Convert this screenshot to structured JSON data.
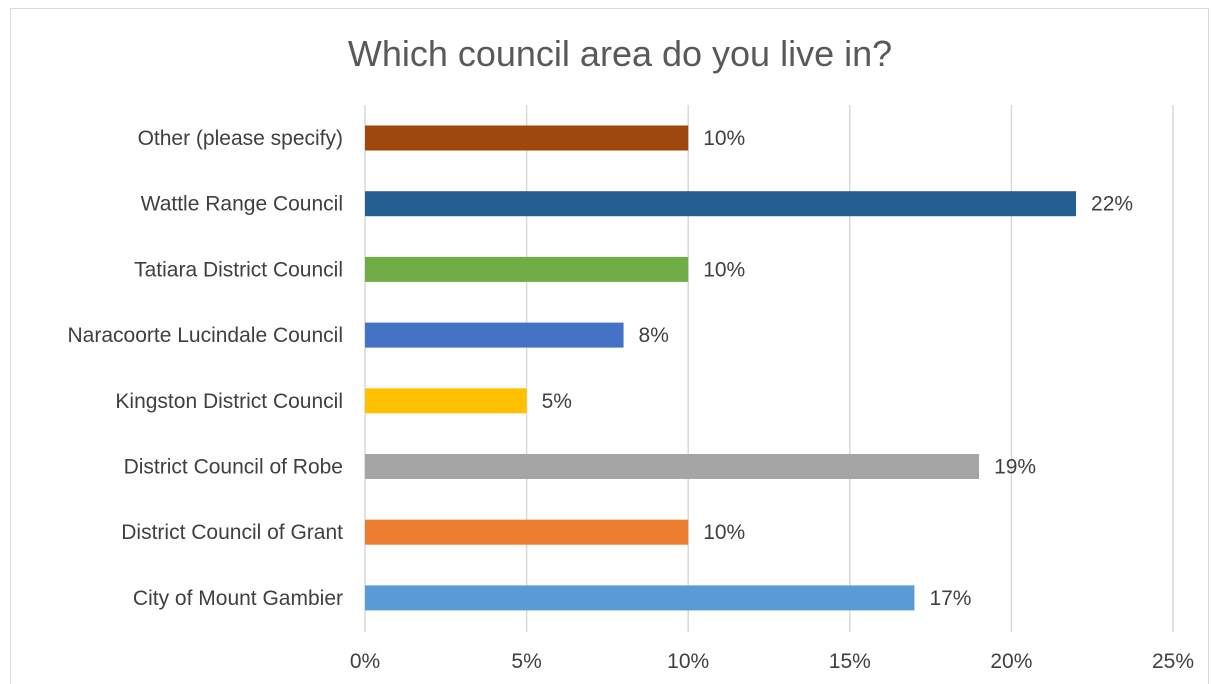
{
  "chart_data": {
    "type": "bar",
    "orientation": "horizontal",
    "title": "Which council area do you live in?",
    "xlabel": "",
    "ylabel": "",
    "categories": [
      "Other (please specify)",
      "Wattle Range Council",
      "Tatiara District Council",
      "Naracoorte Lucindale Council",
      "Kingston District Council",
      "District Council of Robe",
      "District Council of Grant",
      "City of Mount Gambier"
    ],
    "values": [
      10,
      22,
      10,
      8,
      5,
      19,
      10,
      17
    ],
    "value_labels": [
      "10%",
      "22%",
      "10%",
      "8%",
      "5%",
      "19%",
      "10%",
      "17%"
    ],
    "bar_colors": [
      "#9e480e",
      "#255e91",
      "#70ad47",
      "#4472c4",
      "#ffc000",
      "#a5a5a5",
      "#ed7d31",
      "#5b9bd5"
    ],
    "xlim": [
      0,
      25
    ],
    "x_ticks": [
      0,
      5,
      10,
      15,
      20,
      25
    ],
    "x_tick_labels": [
      "0%",
      "5%",
      "10%",
      "15%",
      "20%",
      "25%"
    ],
    "grid": "vertical",
    "legend": "none",
    "colors": {
      "title_text": "#595959",
      "label_text": "#404040",
      "gridline": "#d9d9d9"
    }
  }
}
